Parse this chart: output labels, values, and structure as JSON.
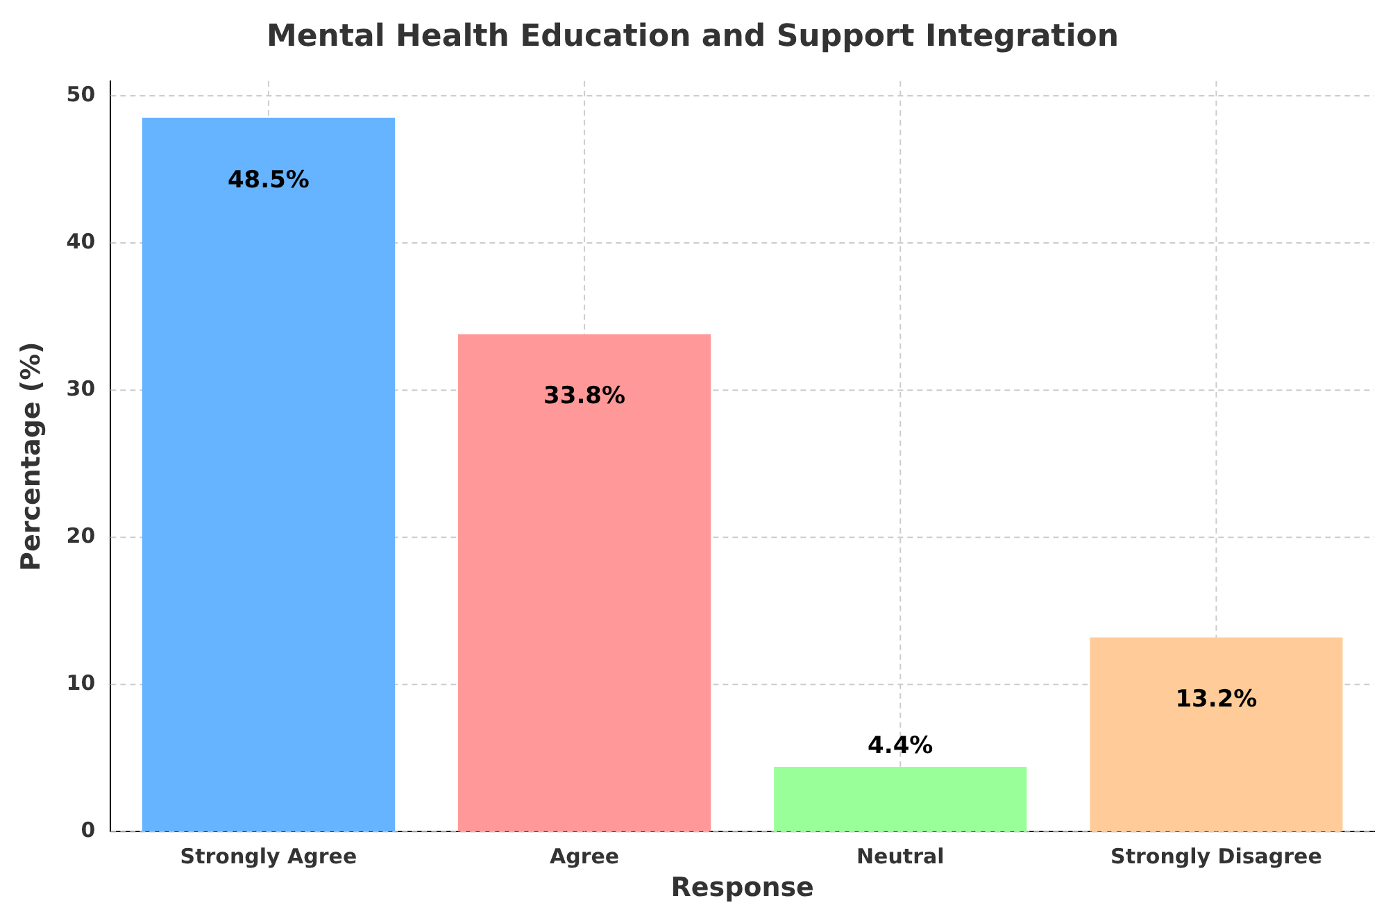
{
  "chart_data": {
    "type": "bar",
    "title": "Mental Health Education and Support Integration",
    "xlabel": "Response",
    "ylabel": "Percentage (%)",
    "categories": [
      "Strongly Agree",
      "Agree",
      "Neutral",
      "Strongly Disagree"
    ],
    "values": [
      48.5,
      33.8,
      4.4,
      13.2
    ],
    "colors": [
      "#66b3ff",
      "#ff9999",
      "#99ff99",
      "#ffcc99"
    ],
    "value_labels": [
      "48.5%",
      "33.8%",
      "4.4%",
      "13.2%"
    ],
    "ylim": [
      0,
      51
    ],
    "yticks": [
      0,
      10,
      20,
      30,
      40,
      50
    ],
    "grid": true,
    "legend": false
  }
}
